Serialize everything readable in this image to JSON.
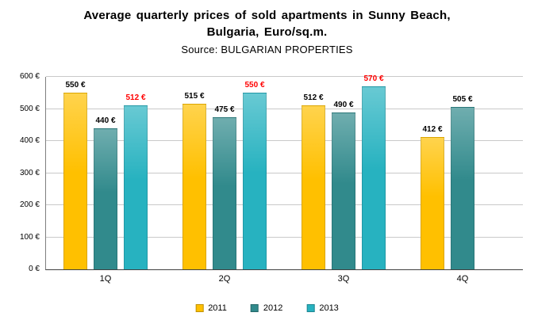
{
  "title": {
    "line1": "Average quarterly prices of sold apartments in Sunny Beach,",
    "line2": "Bulgaria, Euro/sq.m.",
    "source": "Source: BULGARIAN PROPERTIES"
  },
  "chart_data": {
    "type": "bar",
    "title": "Average quarterly prices of sold apartments in Sunny Beach, Bulgaria, Euro/sq.m.",
    "subtitle": "Source: BULGARIAN PROPERTIES",
    "categories": [
      "1Q",
      "2Q",
      "3Q",
      "4Q"
    ],
    "series": [
      {
        "name": "2011",
        "color": "#FFC000",
        "label_color": "#000000",
        "values": [
          550,
          515,
          512,
          412
        ]
      },
      {
        "name": "2012",
        "color": "#318A8C",
        "label_color": "#000000",
        "values": [
          440,
          475,
          490,
          505
        ]
      },
      {
        "name": "2013",
        "color": "#27B2C0",
        "label_color": "#FF0000",
        "values": [
          512,
          550,
          570,
          null
        ]
      }
    ],
    "ylim": [
      0,
      600
    ],
    "ytick_step": 100,
    "yticks": [
      "0 €",
      "100 €",
      "200 €",
      "300 €",
      "400 €",
      "500 €",
      "600 €"
    ],
    "value_suffix": " €",
    "grid": true,
    "legend_position": "bottom"
  }
}
